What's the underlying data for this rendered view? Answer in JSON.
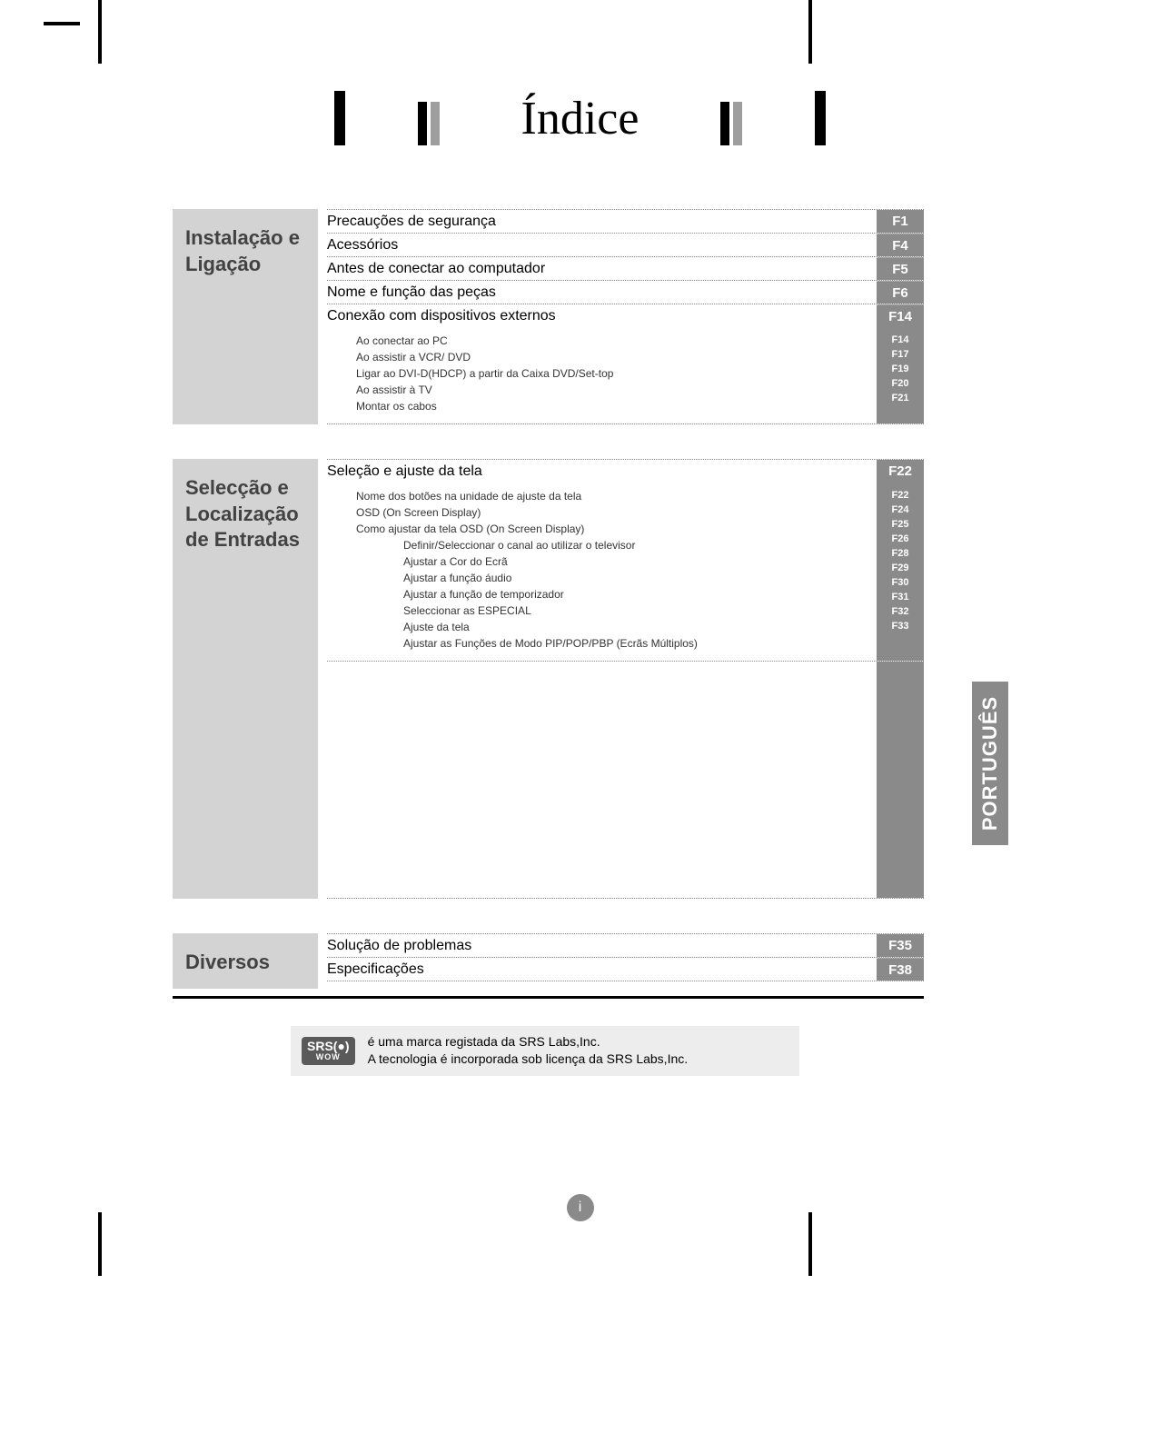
{
  "title": "Índice",
  "lang_tab": "PORTUGUÊS",
  "page_number": "i",
  "colors": {
    "section_label_bg": "#d3d3d3",
    "section_label_text": "#424242",
    "page_col_bg": "#8a8a8a",
    "page_col_text": "#ffffff",
    "dotted_border": "#888888",
    "bar_gray": "#9e9e9e",
    "srs_box_bg": "#ededed"
  },
  "sections": [
    {
      "heading": "Instalação e Ligação",
      "rows": [
        {
          "label": "Precauções de segurança",
          "page": "F1"
        },
        {
          "label": "Acessórios",
          "page": "F4"
        },
        {
          "label": "Antes de conectar ao computador",
          "page": "F5"
        },
        {
          "label": "Nome e função das peças",
          "page": "F6"
        },
        {
          "label": "Conexão com dispositivos externos",
          "page": "F14"
        }
      ],
      "sub": {
        "items": [
          "Ao conectar ao PC",
          "Ao assistir a VCR/ DVD",
          "Ligar ao DVI-D(HDCP) a partir da Caixa DVD/Set-top",
          "Ao assistir à TV",
          "Montar os cabos"
        ],
        "pages": [
          "F14",
          "F17",
          "F19",
          "F20",
          "F21"
        ]
      }
    },
    {
      "heading": "Selecção e Localização de Entradas",
      "rows": [
        {
          "label": "Seleção e ajuste da tela",
          "page": "F22"
        }
      ],
      "sub": {
        "items": [
          "Nome dos botões na unidade de ajuste da tela",
          "OSD (On Screen Display)",
          "Como ajustar da tela OSD (On Screen Display)",
          "Definir/Seleccionar o canal ao utilizar o televisor",
          "Ajustar a Cor do Ecrã",
          "Ajustar a função áudio",
          "Ajustar a função de temporizador",
          "Seleccionar as ESPECIAL",
          "Ajuste da tela",
          "Ajustar as Funções de Modo PIP/POP/PBP (Ecrãs Múltiplos)"
        ],
        "indent2_indices": [
          3,
          4,
          5,
          6,
          7,
          8,
          9
        ],
        "pages": [
          "F22",
          "F24",
          "F25",
          "F26",
          "F28",
          "F29",
          "F30",
          "F31",
          "F32",
          "F33"
        ]
      },
      "tall_pad_after": true
    },
    {
      "heading": "Diversos",
      "rows": [
        {
          "label": "Solução de problemas",
          "page": "F35"
        },
        {
          "label": "Especificações",
          "page": "F38"
        }
      ],
      "thick_rule_after": true
    }
  ],
  "srs": {
    "badge_top": "SRS(●)",
    "badge_bottom": "WOW",
    "line1": "é uma marca registada da SRS Labs,Inc.",
    "line2": "A tecnologia é incorporada sob licença da SRS Labs,Inc."
  }
}
